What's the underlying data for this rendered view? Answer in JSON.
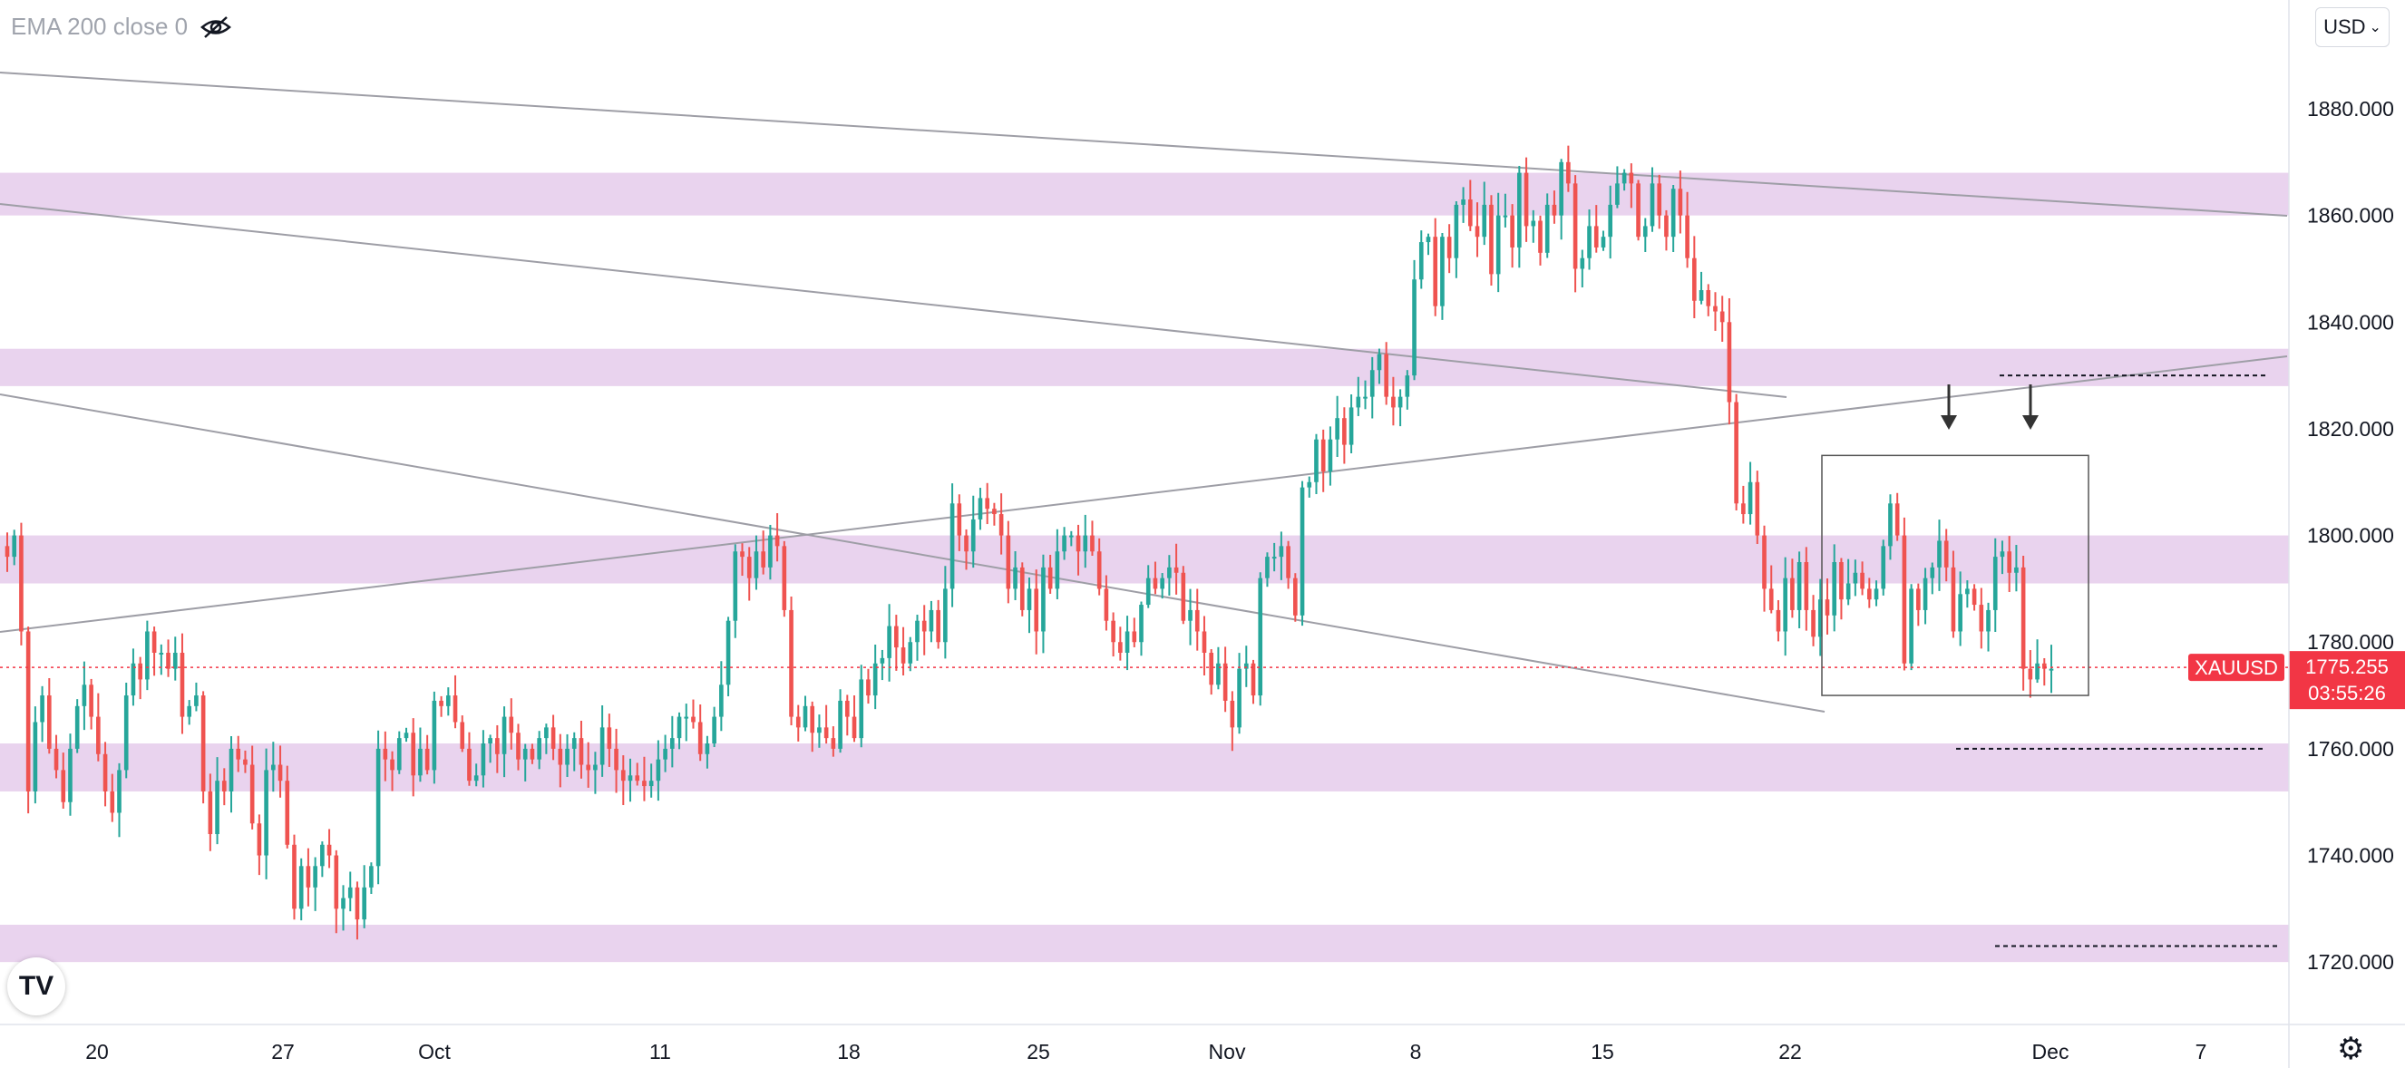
{
  "indicator": {
    "label": "EMA 200 close 0",
    "icon": "eye-crossed-icon"
  },
  "currency": {
    "label": "USD"
  },
  "chart_data": {
    "type": "candlestick",
    "symbol": "XAUUSD",
    "last_price": "1775.255",
    "countdown": "03:55:26",
    "ylim": [
      1710,
      1890
    ],
    "y_ticks": [
      "1880.000",
      "1860.000",
      "1840.000",
      "1820.000",
      "1800.000",
      "1780.000",
      "1760.000",
      "1740.000",
      "1720.000"
    ],
    "x_ticks": [
      "20",
      "27",
      "Oct",
      "11",
      "18",
      "25",
      "Nov",
      "8",
      "15",
      "22",
      "Dec",
      "7"
    ],
    "grid": false,
    "colors": {
      "up": "#26a69a",
      "down": "#ef5350",
      "zone": "#e9d3ee",
      "line": "#9e9ea6",
      "price": "#f23645",
      "axis": "#131722"
    },
    "zones": [
      [
        1860,
        1868
      ],
      [
        1828,
        1835
      ],
      [
        1791,
        1800
      ],
      [
        1752,
        1761
      ],
      [
        1720,
        1727
      ]
    ],
    "key_levels": [
      1830,
      1760,
      1723
    ],
    "closes": [
      1796,
      1800,
      1782,
      1752,
      1765,
      1770,
      1760,
      1756,
      1750,
      1760,
      1768,
      1772,
      1766,
      1759,
      1752,
      1748,
      1756,
      1770,
      1776,
      1773,
      1782,
      1778,
      1778,
      1775,
      1778,
      1766,
      1768,
      1770,
      1752,
      1744,
      1754,
      1752,
      1760,
      1758,
      1757,
      1746,
      1740,
      1756,
      1757,
      1754,
      1742,
      1730,
      1738,
      1734,
      1738,
      1742,
      1740,
      1730,
      1732,
      1734,
      1728,
      1734,
      1738,
      1760,
      1758,
      1756,
      1762,
      1763,
      1755,
      1760,
      1756,
      1769,
      1768,
      1770,
      1765,
      1760,
      1754,
      1755,
      1761,
      1762,
      1759,
      1766,
      1763,
      1758,
      1760,
      1758,
      1762,
      1764,
      1760,
      1757,
      1760,
      1762,
      1757,
      1756,
      1757,
      1764,
      1760,
      1756,
      1754,
      1755,
      1754,
      1753,
      1754,
      1758,
      1760,
      1762,
      1766,
      1766,
      1765,
      1759,
      1761,
      1766,
      1772,
      1784,
      1797,
      1796,
      1792,
      1797,
      1794,
      1800,
      1798,
      1786,
      1766,
      1764,
      1768,
      1763,
      1764,
      1762,
      1760,
      1769,
      1766,
      1762,
      1773,
      1770,
      1776,
      1777,
      1783,
      1779,
      1776,
      1780,
      1784,
      1782,
      1786,
      1780,
      1790,
      1806,
      1800,
      1797,
      1803,
      1807,
      1805,
      1804,
      1800,
      1790,
      1794,
      1786,
      1790,
      1782,
      1794,
      1790,
      1797,
      1800,
      1800,
      1797,
      1800,
      1797,
      1790,
      1784,
      1780,
      1778,
      1782,
      1780,
      1787,
      1792,
      1790,
      1792,
      1794,
      1793,
      1784,
      1786,
      1782,
      1778,
      1772,
      1776,
      1769,
      1764,
      1775,
      1776,
      1770,
      1792,
      1796,
      1796,
      1798,
      1792,
      1785,
      1809,
      1810,
      1818,
      1812,
      1818,
      1822,
      1817,
      1824,
      1826,
      1826,
      1831,
      1834,
      1826,
      1824,
      1826,
      1830,
      1848,
      1855,
      1856,
      1843,
      1856,
      1852,
      1862,
      1863,
      1858,
      1856,
      1862,
      1849,
      1860,
      1860,
      1854,
      1868,
      1858,
      1859,
      1853,
      1862,
      1860,
      1870,
      1866,
      1850,
      1852,
      1858,
      1854,
      1856,
      1862,
      1866,
      1868,
      1866,
      1856,
      1858,
      1866,
      1860,
      1856,
      1865,
      1860,
      1852,
      1844,
      1846,
      1843,
      1842,
      1840,
      1825,
      1806,
      1804,
      1810,
      1800,
      1790,
      1786,
      1782,
      1792,
      1786,
      1795,
      1786,
      1781,
      1788,
      1785,
      1795,
      1788,
      1791,
      1793,
      1790,
      1788,
      1790,
      1798,
      1806,
      1800,
      1776,
      1790,
      1786,
      1792,
      1794,
      1799,
      1794,
      1782,
      1789,
      1790,
      1787,
      1782,
      1786,
      1796,
      1797,
      1793,
      1794,
      1775,
      1773,
      1776,
      1775,
      1775
    ]
  },
  "overlays": {
    "arrows": 2
  }
}
